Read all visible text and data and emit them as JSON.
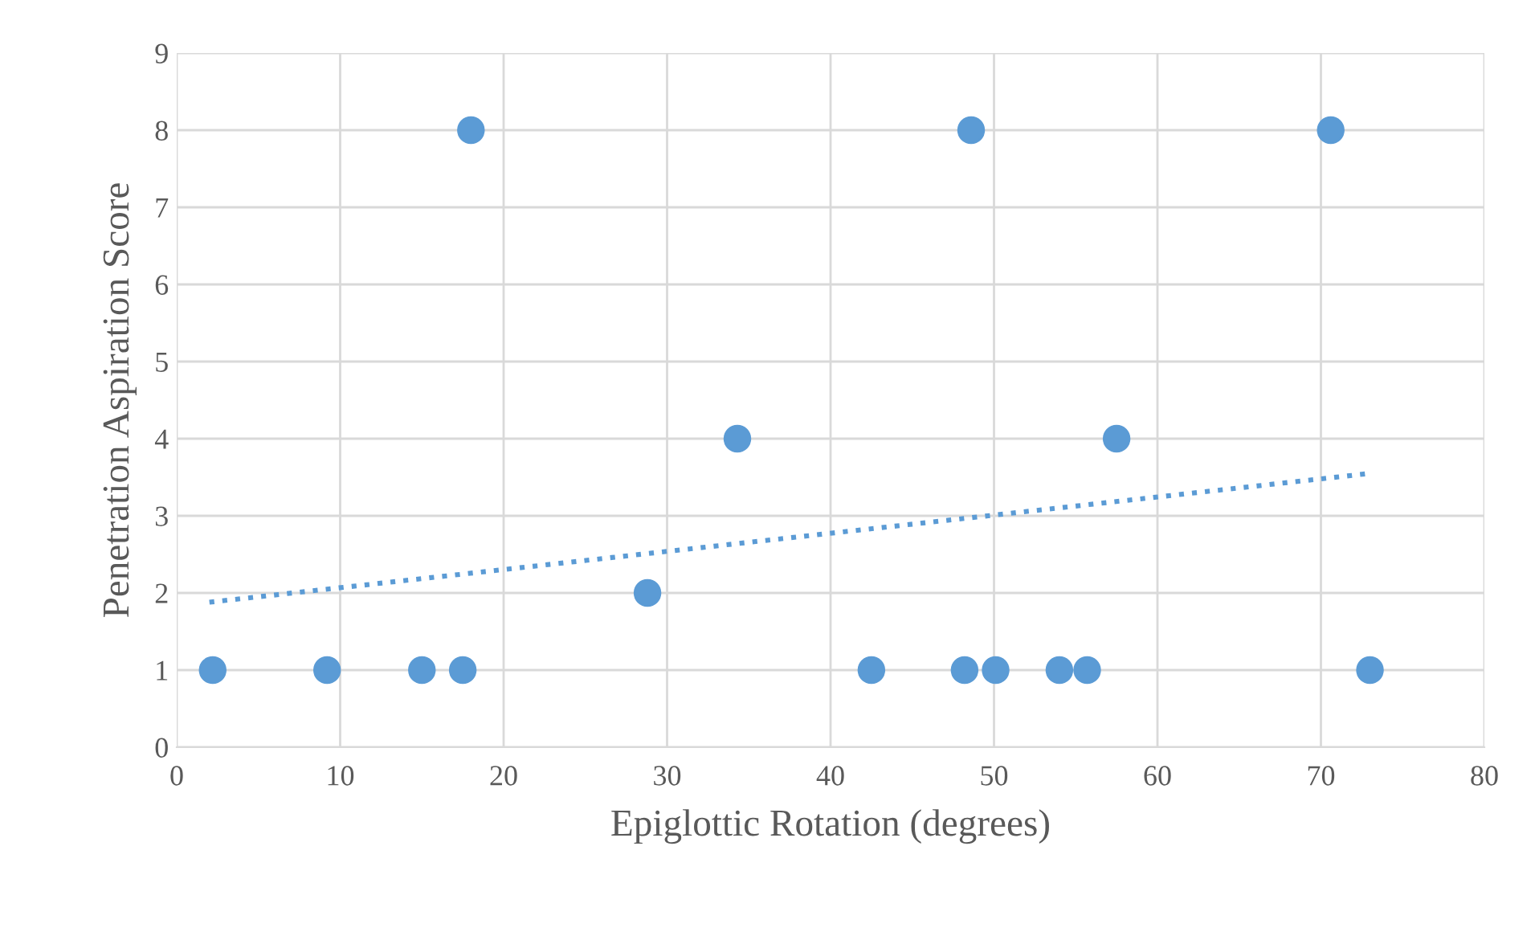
{
  "chart_data": {
    "type": "scatter",
    "xlabel": "Epiglottic Rotation (degrees)",
    "ylabel": "Penetration Aspiration Score",
    "series": [
      {
        "color": "#5b9bd5",
        "marker": "circle",
        "x": [
          2.2,
          9.2,
          15.0,
          17.5,
          18.0,
          28.8,
          34.3,
          42.5,
          48.2,
          48.6,
          50.1,
          54.0,
          55.7,
          57.5,
          70.6,
          73.0
        ],
        "values": [
          1,
          1,
          1,
          1,
          8,
          2,
          4,
          1,
          1,
          8,
          1,
          1,
          1,
          4,
          8,
          1
        ]
      },
      {
        "type": "line",
        "color": "#5b9bd5",
        "line_style": "dotted",
        "x": [
          2,
          73
        ],
        "values": [
          1.88,
          3.55
        ]
      }
    ],
    "xlim": [
      0,
      80
    ],
    "xticks": [
      0,
      10,
      20,
      30,
      40,
      50,
      60,
      70,
      80
    ],
    "ylim": [
      0,
      9
    ],
    "yticks": [
      0,
      1,
      2,
      3,
      4,
      5,
      6,
      7,
      8,
      9
    ],
    "grid": true
  }
}
